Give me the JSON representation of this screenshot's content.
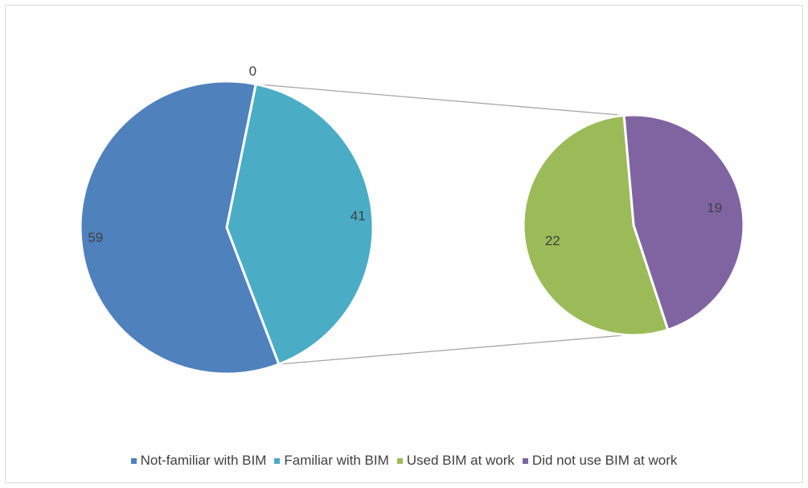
{
  "chart_data": {
    "type": "pie-of-pie",
    "primary_pie": {
      "categories": [
        "Not-familiar with BIM",
        "Familiar with BIM",
        ""
      ],
      "values": [
        59,
        41,
        0
      ],
      "labels": [
        "59",
        "41",
        "0"
      ]
    },
    "secondary_pie": {
      "categories": [
        "Used BIM at work",
        "Did not use BIM at work"
      ],
      "values": [
        22,
        19
      ],
      "labels": [
        "22",
        "19"
      ]
    },
    "legend": {
      "position": "bottom",
      "entries": [
        "Not-familiar with BIM",
        "Familiar with BIM",
        "Used BIM at work",
        "Did not use BIM at work"
      ]
    },
    "colors": {
      "Not-familiar with BIM": "#4f81bd",
      "Familiar with BIM": "#4bacc6",
      "Used BIM at work": "#9bbb59",
      "Did not use BIM at work": "#8064a2",
      "connector": "#a6a6a6",
      "label_text": "#404040"
    }
  }
}
